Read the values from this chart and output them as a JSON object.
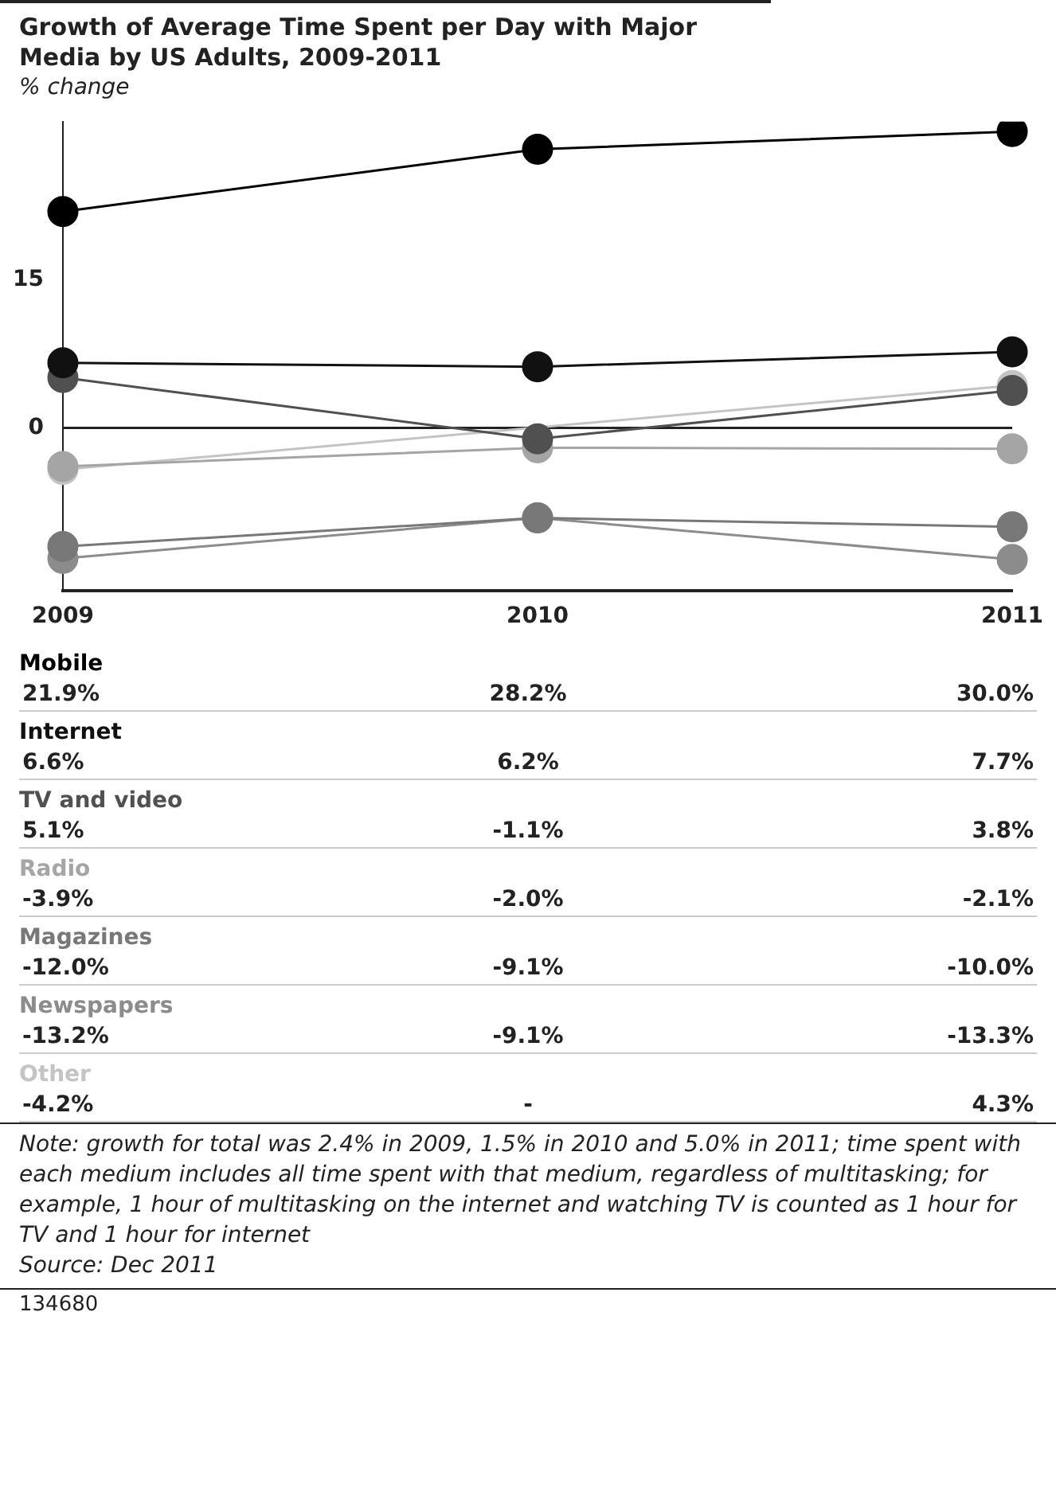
{
  "chart_data": {
    "type": "line",
    "title": "Growth of Average Time Spent per Day with Major Media by US Adults, 2009-2011",
    "subtitle": "% change",
    "categories": [
      "2009",
      "2010",
      "2011"
    ],
    "ylim": [
      -16.5,
      31
    ],
    "yticks": [
      0,
      15
    ],
    "marker": "circle",
    "line_style": "solid",
    "ref_lines": [
      {
        "axis": "y",
        "value": 0,
        "color": "#222222"
      }
    ],
    "series": [
      {
        "name": "Mobile",
        "color": "#000000",
        "values": [
          21.9,
          28.2,
          30.0
        ],
        "value_labels": [
          "21.9%",
          "28.2%",
          "30.0%"
        ]
      },
      {
        "name": "Internet",
        "color": "#111111",
        "values": [
          6.6,
          6.2,
          7.7
        ],
        "value_labels": [
          "6.6%",
          "6.2%",
          "7.7%"
        ]
      },
      {
        "name": "TV and video",
        "color": "#505050",
        "values": [
          5.1,
          -1.1,
          3.8
        ],
        "value_labels": [
          "5.1%",
          "-1.1%",
          "3.8%"
        ]
      },
      {
        "name": "Radio",
        "color": "#a5a5a5",
        "values": [
          -3.9,
          -2.0,
          -2.1
        ],
        "value_labels": [
          "-3.9%",
          "-2.0%",
          "-2.1%"
        ]
      },
      {
        "name": "Magazines",
        "color": "#787878",
        "values": [
          -12.0,
          -9.1,
          -10.0
        ],
        "value_labels": [
          "-12.0%",
          "-9.1%",
          "-10.0%"
        ]
      },
      {
        "name": "Newspapers",
        "color": "#8c8c8c",
        "values": [
          -13.2,
          -9.1,
          -13.3
        ],
        "value_labels": [
          "-13.2%",
          "-9.1%",
          "-13.3%"
        ]
      },
      {
        "name": "Other",
        "color": "#c4c4c4",
        "values": [
          -4.2,
          null,
          4.3
        ],
        "value_labels": [
          "-4.2%",
          "-",
          "4.3%"
        ]
      }
    ],
    "annotations": [
      "Note: growth for total was 2.4% in 2009, 1.5% in 2010 and 5.0% in 2011; time spent with each medium includes all time spent with that medium, regardless of multitasking; for example, 1 hour of multitasking on the internet and watching TV is counted as 1 hour for TV and 1 hour for internet",
      "Source: Dec 2011",
      "134680"
    ]
  }
}
